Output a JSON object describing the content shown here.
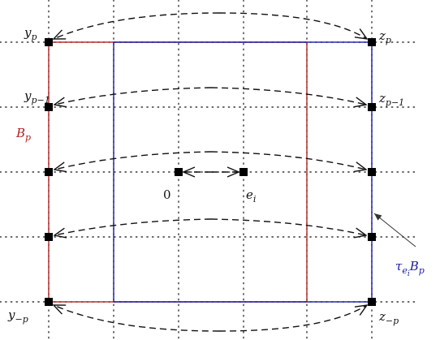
{
  "labels": {
    "yp_base": "y",
    "yp_sub": "p",
    "ypm1_base": "y",
    "ypm1_sub": "p−1",
    "ymp_base": "y",
    "ymp_sub": "−p",
    "zp_base": "z",
    "zp_sub": "p",
    "zpm1_base": "z",
    "zpm1_sub": "p−1",
    "zmp_base": "z",
    "zmp_sub": "−p",
    "Bp_base": "B",
    "Bp_sub": "p",
    "zero": "0",
    "ei_base": "e",
    "ei_sub": "i",
    "tau_base": "τ",
    "tau_sub": "e",
    "tau_subsub": "i",
    "tau_B": "B",
    "tau_Bsub": "p"
  },
  "colors": {
    "Bp": "#b22222",
    "tau": "#1a1aaa",
    "ink": "#111111"
  }
}
